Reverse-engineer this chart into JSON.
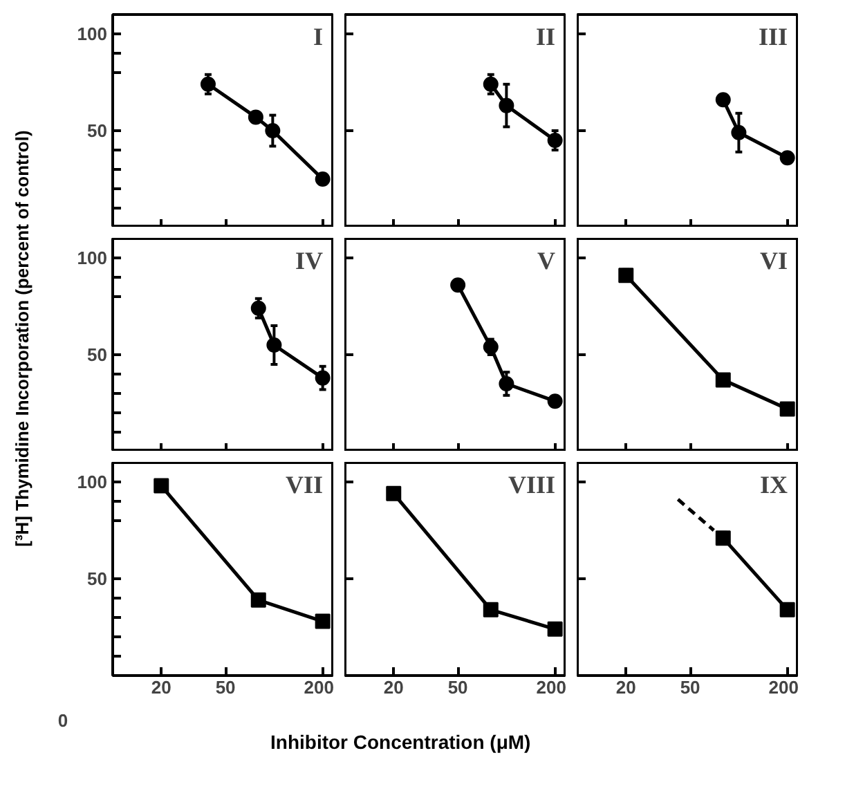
{
  "chart_data": [
    {
      "type": "line",
      "title": "I",
      "log": "x",
      "grid": false,
      "marker": "circle",
      "tick_labels": "y",
      "xlim": [
        10,
        235
      ],
      "xticks": [
        20,
        50,
        200
      ],
      "ylim": [
        0,
        110
      ],
      "yticks": [
        {
          "value": 10,
          "label": null
        },
        {
          "value": 20,
          "label": null
        },
        {
          "value": 30,
          "label": null
        },
        {
          "value": 40,
          "label": null
        },
        50,
        {
          "value": 80,
          "label": null
        },
        {
          "value": 90,
          "label": null
        },
        100
      ],
      "series": [
        {
          "color": "#000000",
          "x": [
            39,
            77,
            98,
            200
          ],
          "values": [
            74,
            57,
            50,
            25
          ],
          "errors": [
            5,
            2,
            8,
            null
          ]
        }
      ]
    },
    {
      "type": "line",
      "title": "II",
      "log": "x",
      "grid": false,
      "marker": "circle",
      "tick_labels": false,
      "xlim": [
        10,
        235
      ],
      "xticks": [
        20,
        50,
        200
      ],
      "ylim": [
        0,
        110
      ],
      "yticks": [
        50,
        100
      ],
      "series": [
        {
          "color": "#000000",
          "x": [
            80,
            100,
            200
          ],
          "values": [
            74,
            63,
            45
          ],
          "errors": [
            5,
            11,
            5
          ]
        }
      ]
    },
    {
      "type": "line",
      "title": "III",
      "log": "x",
      "grid": false,
      "marker": "circle",
      "tick_labels": false,
      "xlim": [
        10,
        235
      ],
      "xticks": [
        20,
        50,
        200
      ],
      "ylim": [
        0,
        110
      ],
      "yticks": [
        50,
        100
      ],
      "series": [
        {
          "color": "#000000",
          "x": [
            80,
            100,
            200
          ],
          "values": [
            66,
            49,
            36
          ],
          "errors": [
            2,
            10,
            null
          ]
        }
      ]
    },
    {
      "type": "line",
      "title": "IV",
      "ylabel": "[³H] Thymidine Incorporation (percent of control)",
      "log": "x",
      "grid": false,
      "marker": "circle",
      "tick_labels": "y",
      "xlim": [
        10,
        235
      ],
      "xticks": [
        20,
        50,
        200
      ],
      "ylim": [
        0,
        110
      ],
      "yticks": [
        {
          "value": 10,
          "label": null
        },
        {
          "value": 20,
          "label": null
        },
        {
          "value": 30,
          "label": null
        },
        {
          "value": 40,
          "label": null
        },
        50,
        {
          "value": 80,
          "label": null
        },
        {
          "value": 90,
          "label": null
        },
        100
      ],
      "series": [
        {
          "color": "#000000",
          "x": [
            80,
            100,
            200
          ],
          "values": [
            74,
            55,
            38
          ],
          "errors": [
            5,
            10,
            6
          ]
        }
      ]
    },
    {
      "type": "line",
      "title": "V",
      "log": "x",
      "grid": false,
      "marker": "circle",
      "tick_labels": false,
      "xlim": [
        10,
        235
      ],
      "xticks": [
        20,
        50,
        200
      ],
      "ylim": [
        0,
        110
      ],
      "yticks": [
        50,
        100
      ],
      "series": [
        {
          "color": "#000000",
          "x": [
            50,
            80,
            100,
            200
          ],
          "values": [
            86,
            54,
            35,
            26
          ],
          "errors": [
            2,
            4,
            6,
            null
          ]
        }
      ]
    },
    {
      "type": "line",
      "title": "VI",
      "log": "x",
      "grid": false,
      "marker": "square",
      "tick_labels": false,
      "xlim": [
        10,
        235
      ],
      "xticks": [
        20,
        50,
        200
      ],
      "ylim": [
        0,
        110
      ],
      "yticks": [
        50,
        100
      ],
      "series": [
        {
          "color": "#000000",
          "x": [
            20,
            80,
            200
          ],
          "values": [
            91,
            37,
            22
          ],
          "errors": [
            3,
            2,
            2
          ]
        }
      ]
    },
    {
      "type": "line",
      "title": "VII",
      "annotations": [
        "0"
      ],
      "log": "x",
      "grid": false,
      "marker": "square",
      "xlim": [
        10,
        235
      ],
      "xticks": [
        20,
        50,
        200
      ],
      "ylim": [
        0,
        110
      ],
      "yticks": [
        {
          "value": 10,
          "label": null
        },
        {
          "value": 20,
          "label": null
        },
        {
          "value": 30,
          "label": null
        },
        {
          "value": 40,
          "label": null
        },
        50,
        {
          "value": 80,
          "label": null
        },
        {
          "value": 90,
          "label": null
        },
        100
      ],
      "series": [
        {
          "color": "#000000",
          "x": [
            20,
            80,
            200
          ],
          "values": [
            98,
            39,
            28
          ],
          "errors": [
            2,
            2,
            2
          ]
        }
      ]
    },
    {
      "type": "line",
      "title": "VIII",
      "xlabel": "Inhibitor   Concentration (μM)",
      "log": "x",
      "grid": false,
      "marker": "square",
      "tick_labels": "x",
      "xlim": [
        10,
        235
      ],
      "xticks": [
        20,
        50,
        200
      ],
      "ylim": [
        0,
        110
      ],
      "yticks": [
        50,
        100
      ],
      "series": [
        {
          "color": "#000000",
          "x": [
            20,
            80,
            200
          ],
          "values": [
            94,
            34,
            24
          ],
          "errors": [
            2,
            2,
            2
          ]
        }
      ]
    },
    {
      "type": "line",
      "title": "IX",
      "log": "x",
      "grid": false,
      "marker": "square",
      "tick_labels": "x",
      "xlim": [
        10,
        235
      ],
      "xticks": [
        20,
        50,
        200
      ],
      "ylim": [
        0,
        110
      ],
      "yticks": [
        50,
        100
      ],
      "series": [
        {
          "color": "#000000",
          "x": [
            42,
            70
          ],
          "values": [
            91,
            75
          ],
          "marker": "none",
          "line_style": "dashed"
        },
        {
          "color": "#000000",
          "x": [
            80,
            200
          ],
          "values": [
            71,
            34
          ],
          "errors": [
            3,
            null
          ]
        }
      ]
    }
  ]
}
